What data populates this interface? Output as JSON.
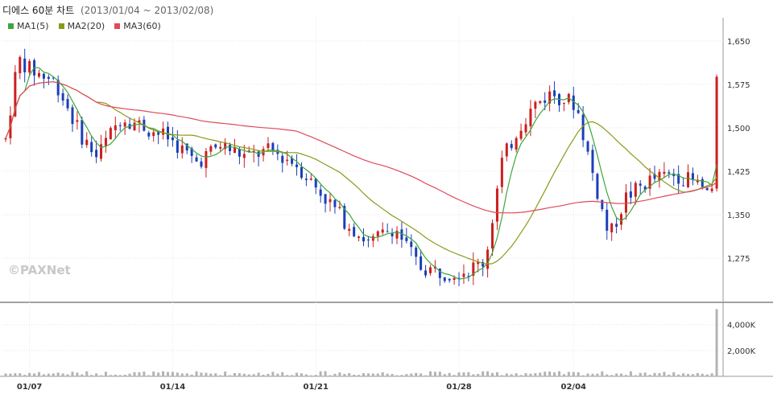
{
  "header": {
    "title": "디에스 60분 차트",
    "range": "(2013/01/04 ~ 2013/02/08)"
  },
  "watermark": "©PAXNet",
  "colors": {
    "up": "#cc1f1f",
    "down": "#1b3fb8",
    "volume": "#b3b3b3",
    "ma1": "#3ca73c",
    "ma2": "#8a9a1a",
    "ma3": "#e04a5a",
    "grid": "#e6e6e6"
  },
  "chart_data": [
    {
      "type": "candlestick",
      "title": "디에스 60분 차트",
      "ylim": [
        1200,
        1690
      ],
      "y_ticks": [
        "1,275",
        "1,350",
        "1,425",
        "1,500",
        "1,575",
        "1,650"
      ],
      "x_ticks": [
        "01/07",
        "01/14",
        "01/21",
        "01/28",
        "02/04"
      ],
      "legend": [
        {
          "name": "MA1(5)",
          "color": "#3ca73c"
        },
        {
          "name": "MA2(20)",
          "color": "#8a9a1a"
        },
        {
          "name": "MA3(60)",
          "color": "#e04a5a"
        }
      ],
      "grid": true,
      "legend_position": "top-left"
    },
    {
      "type": "bar",
      "title": "",
      "y_ticks": [
        "2,000K",
        "4,000K"
      ],
      "ylim": [
        0,
        5600
      ],
      "unit": "K"
    }
  ]
}
